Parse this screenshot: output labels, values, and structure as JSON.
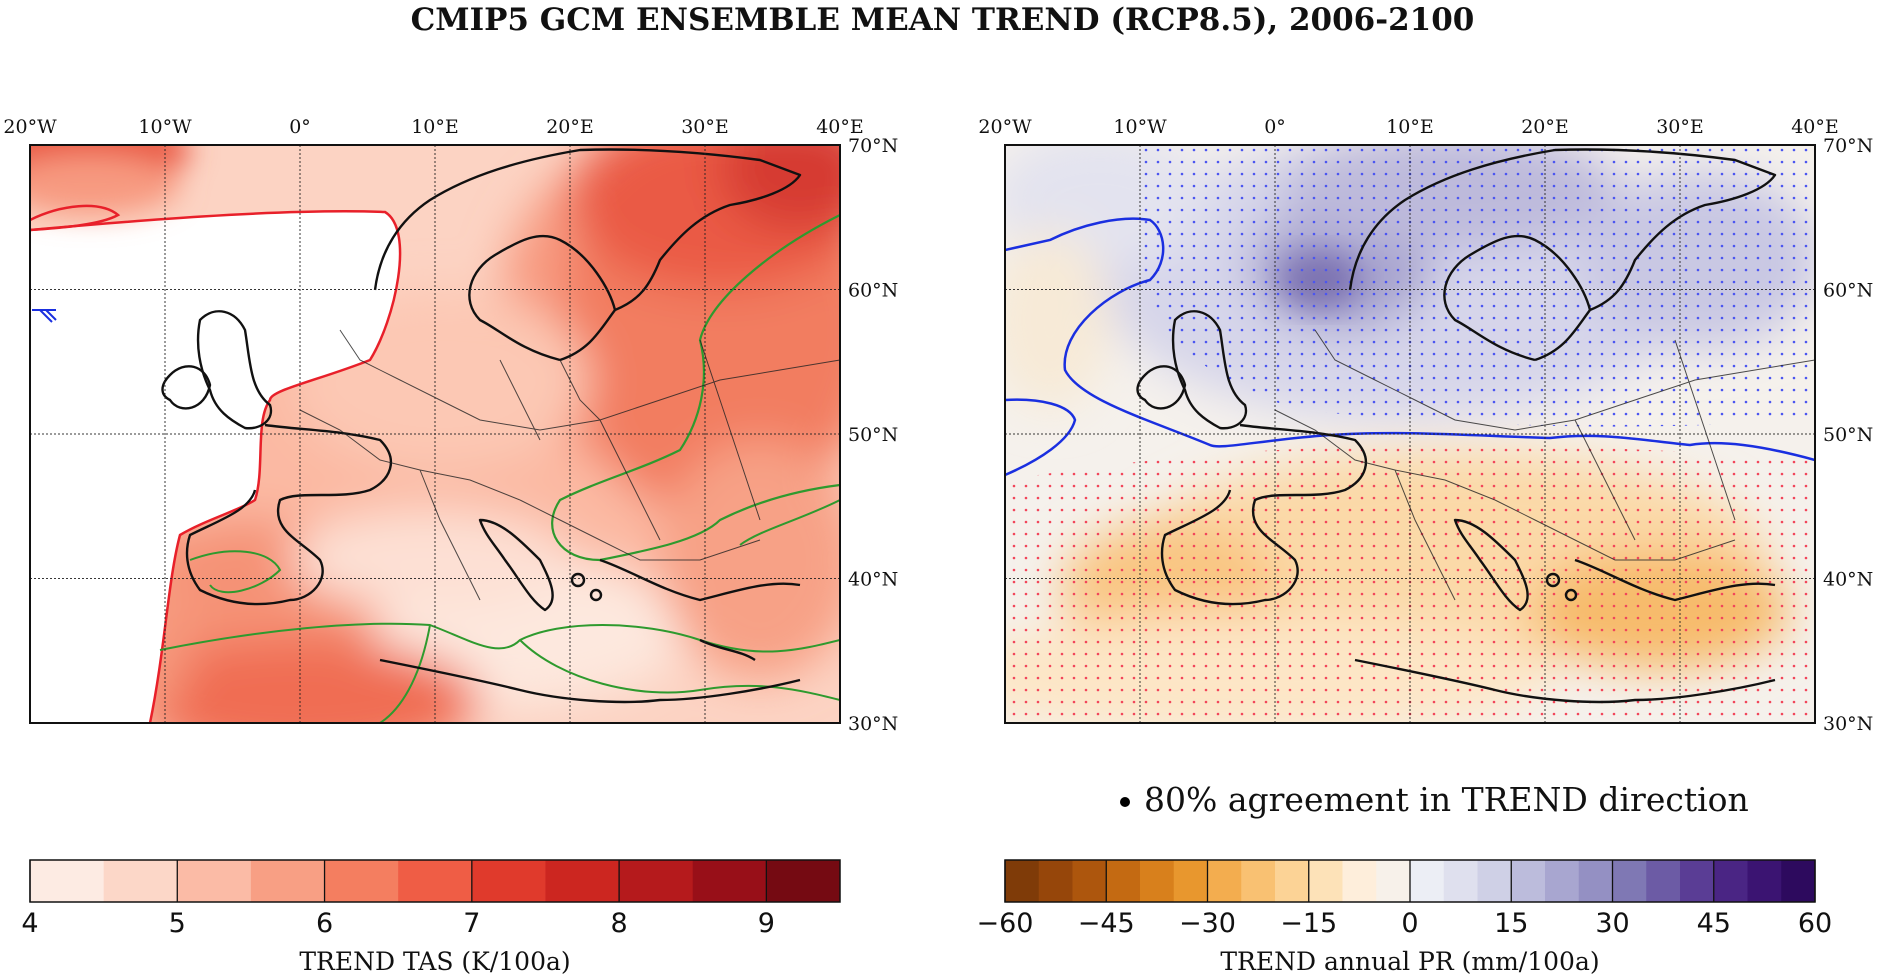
{
  "title": "CMIP5 GCM ENSEMBLE MEAN TREND (RCP8.5), 2006-2100",
  "agreement_note": "80% agreement in TREND direction",
  "chart_data": [
    {
      "type": "map",
      "name": "left-panel",
      "variable": "TREND TAS (K/100a)",
      "lon_range": [
        -20,
        40
      ],
      "lat_range": [
        30,
        70
      ],
      "lon_ticks": [
        "20°W",
        "10°W",
        "0°",
        "10°E",
        "20°E",
        "30°E",
        "40°E"
      ],
      "lat_ticks": [
        "70°N",
        "60°N",
        "50°N",
        "40°N",
        "30°N"
      ],
      "colorbar": {
        "label": "TREND TAS (K/100a)",
        "range": [
          4,
          9.5
        ],
        "boundaries": [
          4,
          4.5,
          5,
          5.5,
          6,
          6.5,
          7,
          7.5,
          8,
          8.5,
          9,
          9.5
        ],
        "tick_labels": [
          "4",
          "5",
          "6",
          "7",
          "8",
          "9"
        ],
        "tick_values": [
          4,
          5,
          6,
          7,
          8,
          9
        ],
        "colors": [
          "#fdebe3",
          "#fcd7c8",
          "#fbbba6",
          "#f89f84",
          "#f47e60",
          "#ef5d45",
          "#e03a2c",
          "#cc2620",
          "#b51a1c",
          "#980f18",
          "#750a12"
        ]
      }
    },
    {
      "type": "map",
      "name": "right-panel",
      "variable": "TREND annual PR (mm/100a)",
      "lon_range": [
        -20,
        40
      ],
      "lat_range": [
        30,
        70
      ],
      "lon_ticks": [
        "20°W",
        "10°W",
        "0°",
        "10°E",
        "20°E",
        "30°E",
        "40°E"
      ],
      "lat_ticks": [
        "70°N",
        "60°N",
        "50°N",
        "40°N",
        "30°N"
      ],
      "colorbar": {
        "label": "TREND annual PR (mm/100a)",
        "range": [
          -60,
          60
        ],
        "tick_labels": [
          "−60",
          "−45",
          "−30",
          "−15",
          "0",
          "15",
          "30",
          "45",
          "60"
        ],
        "tick_values": [
          -60,
          -45,
          -30,
          -15,
          0,
          15,
          30,
          45,
          60
        ],
        "colors": [
          "#7f3b08",
          "#96460a",
          "#ad560d",
          "#c46a12",
          "#d8801c",
          "#e8972e",
          "#f3ad4f",
          "#f9c172",
          "#fcd396",
          "#fde2b8",
          "#feeedb",
          "#f7f1ea",
          "#eceef5",
          "#dfe0ee",
          "#cfd0e6",
          "#bcbcdc",
          "#a8a6d0",
          "#9490c3",
          "#7f78b4",
          "#6c5ba5",
          "#5a3d95",
          "#4a2584",
          "#3b1472",
          "#2d0a5e"
        ]
      }
    }
  ],
  "colors": {
    "left_contour": "#e8202a",
    "green_contour": "#2e9a2e",
    "blue_contour": "#1a2fe0",
    "dry_dots": "#f2455a",
    "wet_dots": "#4b55f0"
  }
}
